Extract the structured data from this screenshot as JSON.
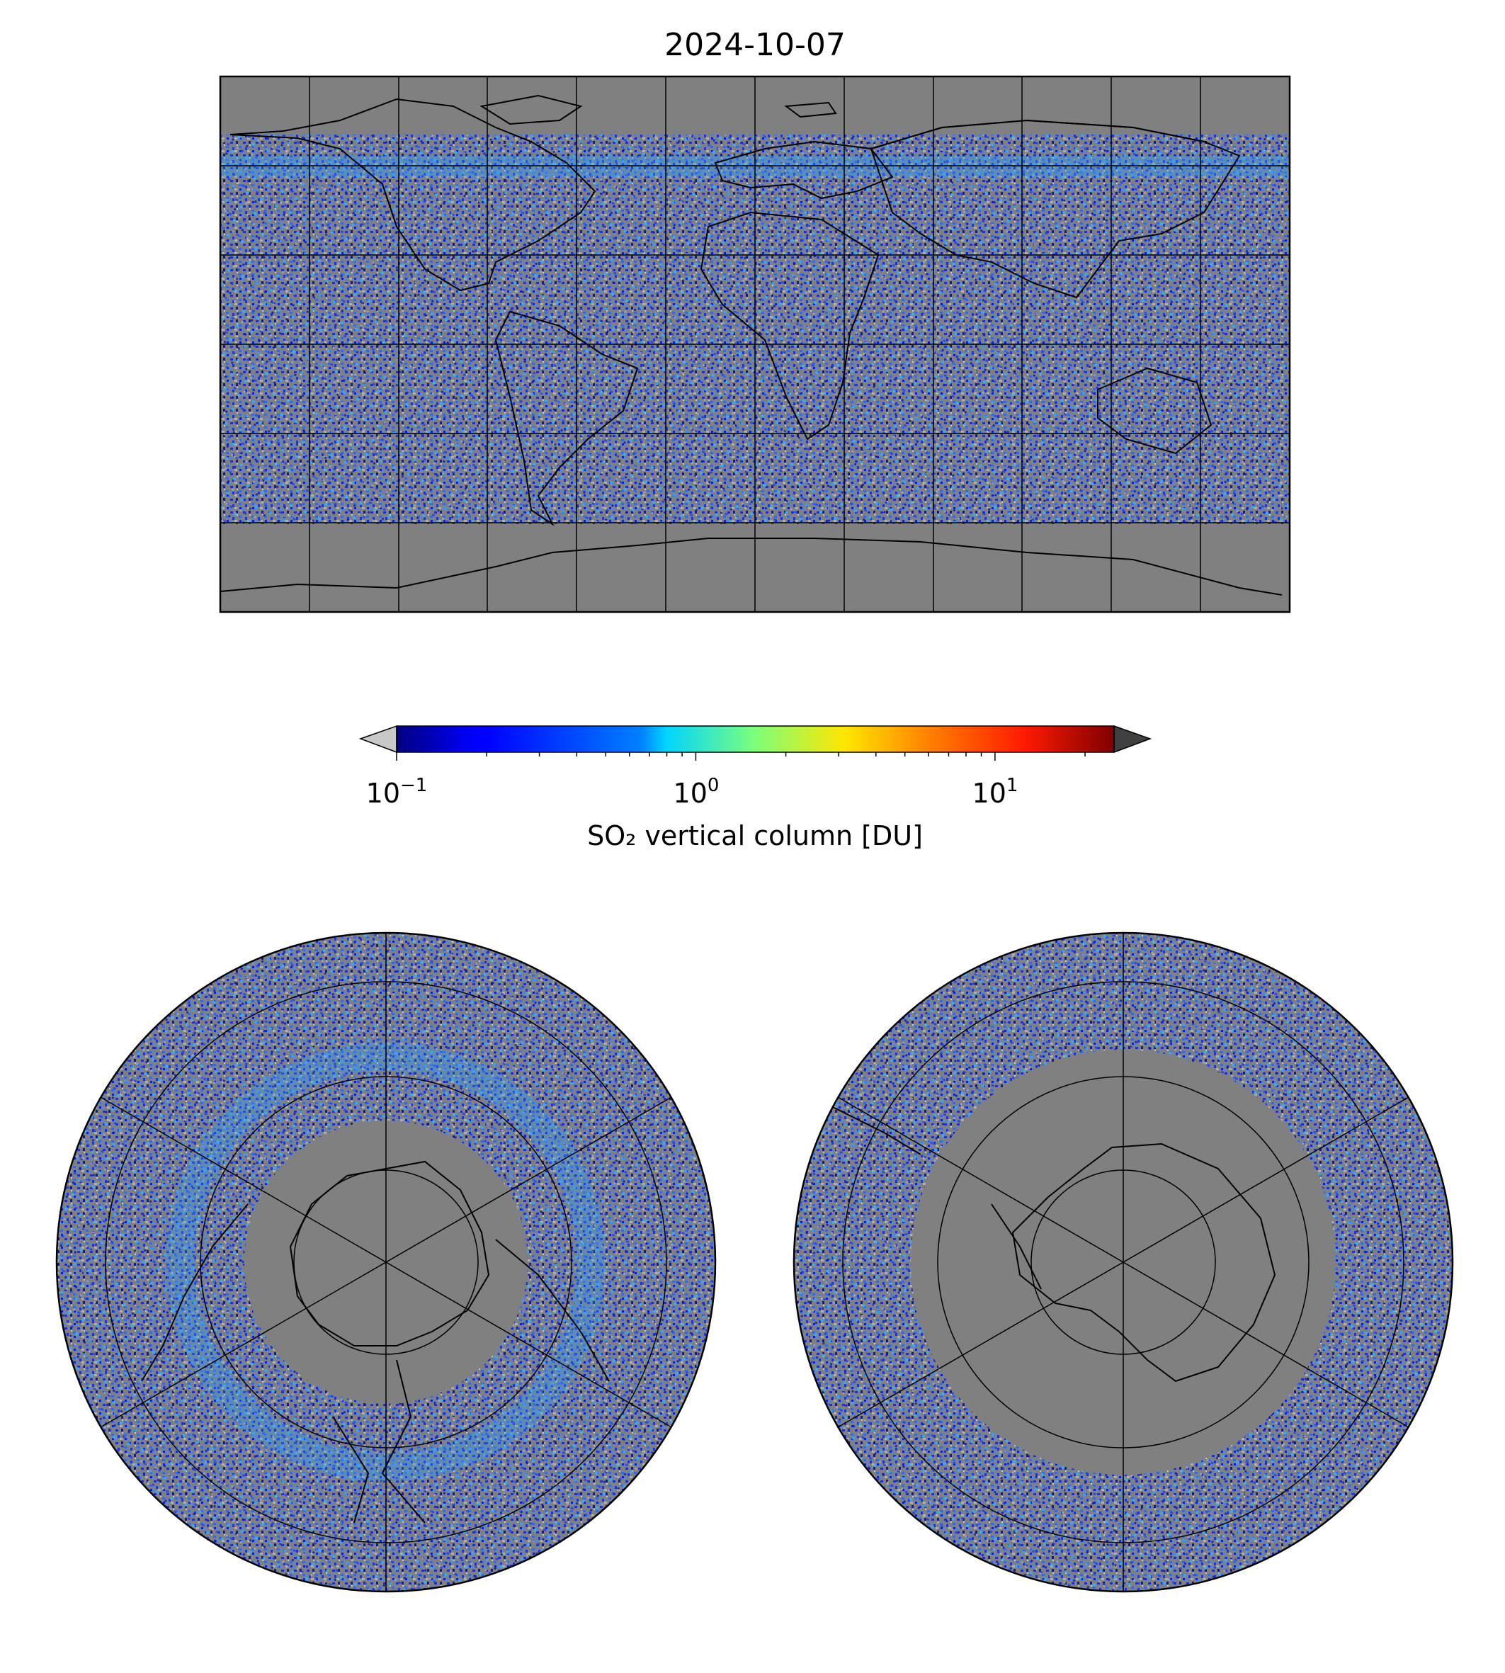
{
  "figure": {
    "title": "2024-10-07"
  },
  "colorbar": {
    "label": "SO₂ vertical column [DU]",
    "scale": "log",
    "range": [
      0.1,
      25
    ],
    "colormap": "jet",
    "ticks": [
      {
        "base": "10",
        "exp": "−1",
        "value": 0.1
      },
      {
        "base": "10",
        "exp": "0",
        "value": 1
      },
      {
        "base": "10",
        "exp": "1",
        "value": 10
      }
    ],
    "under_color": "#c8c8c8",
    "over_color": "#404040"
  },
  "maps": {
    "background_color": "#808080",
    "global_grid": {
      "lon_step_deg": 30,
      "lat_step_deg": 30
    },
    "panels": [
      "global plate carree",
      "north polar stereographic",
      "south polar stereographic"
    ]
  }
}
